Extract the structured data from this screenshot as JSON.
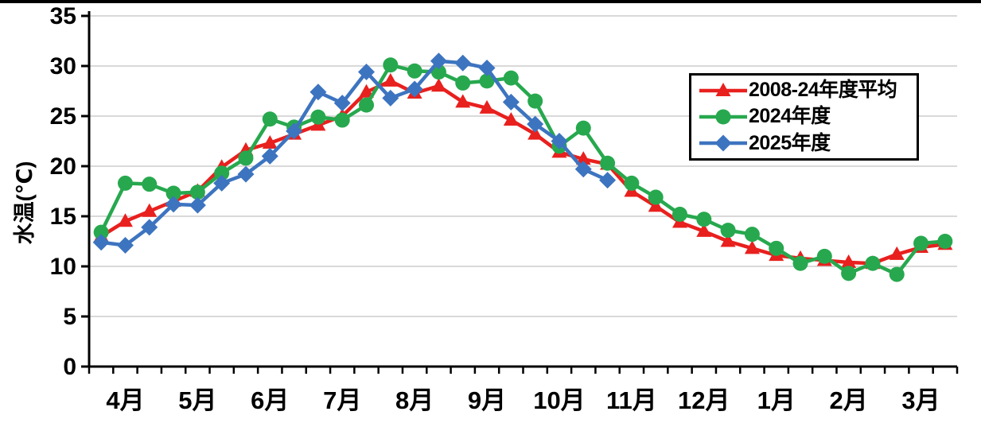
{
  "page": {
    "background": "#ffffff",
    "top_border_color": "#000000"
  },
  "chart_data": {
    "type": "line",
    "title": "",
    "ylabel": "水温(℃)",
    "xlabel": "",
    "ylim": [
      0,
      35
    ],
    "ytick_step": 5,
    "grid": true,
    "grid_color": "#d9d9d9",
    "axis_color": "#000000",
    "text_color": "#000000",
    "legend_position": "upper right",
    "points_per_month": 3,
    "month_labels": [
      "4月",
      "5月",
      "6月",
      "7月",
      "8月",
      "9月",
      "10月",
      "11月",
      "12月",
      "1月",
      "2月",
      "3月"
    ],
    "series": [
      {
        "name": "2008-24年度平均",
        "color": "#e8201e",
        "marker": "triangle",
        "values": [
          13.0,
          14.5,
          15.5,
          16.5,
          17.5,
          19.9,
          21.6,
          22.3,
          23.2,
          24.1,
          25.0,
          27.4,
          28.5,
          27.3,
          28.0,
          26.4,
          25.8,
          24.6,
          23.2,
          21.4,
          20.7,
          20.2,
          17.5,
          16.0,
          14.4,
          13.5,
          12.5,
          11.8,
          11.1,
          10.8,
          10.6,
          10.4,
          10.3,
          11.2,
          11.9,
          12.2
        ]
      },
      {
        "name": "2024年度",
        "color": "#27a84e",
        "marker": "circle",
        "values": [
          13.4,
          18.3,
          18.2,
          17.3,
          17.4,
          19.3,
          20.8,
          24.7,
          23.9,
          24.9,
          24.6,
          26.1,
          30.1,
          29.5,
          29.4,
          28.3,
          28.5,
          28.8,
          26.5,
          22.0,
          23.8,
          20.3,
          18.3,
          16.9,
          15.2,
          14.7,
          13.6,
          13.2,
          11.8,
          10.3,
          11.0,
          9.3,
          10.3,
          9.2,
          12.3,
          12.5
        ]
      },
      {
        "name": "2025年度",
        "color": "#3d74c0",
        "marker": "diamond",
        "values": [
          12.4,
          12.1,
          13.9,
          16.2,
          16.1,
          18.3,
          19.2,
          21.0,
          23.5,
          27.4,
          26.3,
          29.4,
          26.8,
          27.7,
          30.5,
          30.3,
          29.8,
          26.4,
          24.2,
          22.5,
          19.7,
          18.6
        ]
      }
    ]
  }
}
